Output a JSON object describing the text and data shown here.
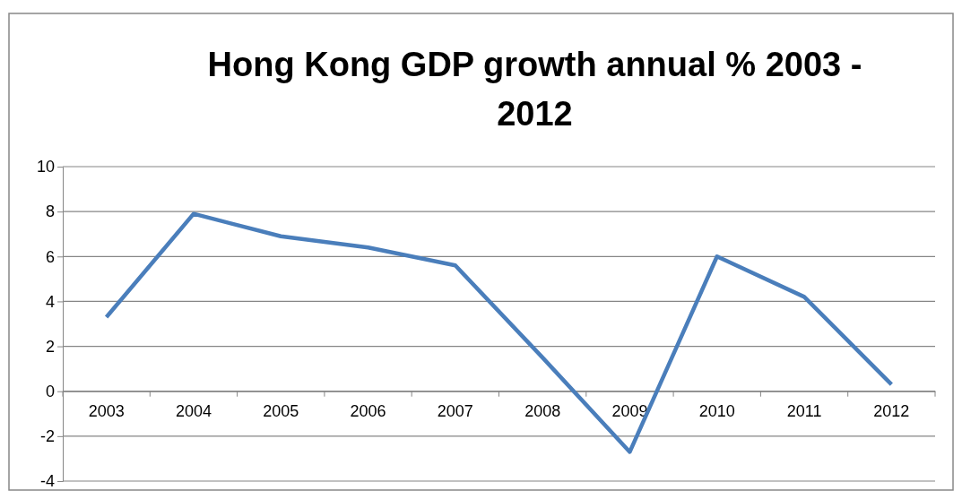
{
  "chart_data": {
    "type": "line",
    "title": "Hong Kong GDP growth annual % 2003 - 2012",
    "categories": [
      "2003",
      "2004",
      "2005",
      "2006",
      "2007",
      "2008",
      "2009",
      "2010",
      "2011",
      "2012"
    ],
    "series": [
      {
        "color": "#4a7ebb",
        "values": [
          3.3,
          7.9,
          6.9,
          6.4,
          5.6,
          1.5,
          -2.7,
          6.0,
          4.2,
          0.3
        ]
      }
    ],
    "ylim": [
      -4,
      10
    ],
    "yticks": [
      -4,
      -2,
      0,
      2,
      4,
      6,
      8,
      10
    ],
    "grid": "y",
    "marker": "none",
    "line_style": "solid"
  }
}
